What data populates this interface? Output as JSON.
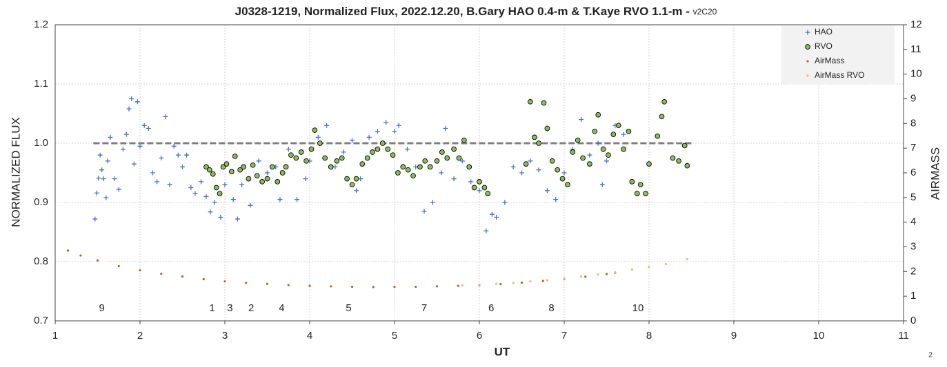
{
  "chart_data": {
    "type": "scatter",
    "title": "J0328-1219, Normalized Flux, 2022.12.20, B.Gary HAO 0.4-m & T.Kaye RVO 1.1-m -",
    "title_suffix": "v2C20",
    "x_label": "UT",
    "y_label": "NORMALIZED FLUX",
    "y2_label": "AIRMASS",
    "page_number": "2",
    "xlim": [
      1,
      11
    ],
    "xticks": [
      1,
      2,
      3,
      4,
      5,
      6,
      7,
      8,
      9,
      10,
      11
    ],
    "ylim": [
      0.7,
      1.2
    ],
    "yticks": [
      0.7,
      0.8,
      0.9,
      {
        "value": 1,
        "label": "1.0"
      },
      1.1,
      1.2
    ],
    "y2lim": [
      0,
      12
    ],
    "y2ticks": [
      0,
      1,
      2,
      3,
      4,
      5,
      6,
      7,
      8,
      9,
      10,
      11,
      12
    ],
    "grid": true,
    "legend": "top-right",
    "reference": {
      "y": 1.0,
      "x": [
        1.45,
        8.5
      ],
      "color": "#7f7f7f"
    },
    "annotations": [
      {
        "text": "9",
        "x": 1.55
      },
      {
        "text": "1",
        "x": 2.85
      },
      {
        "text": "3",
        "x": 3.06
      },
      {
        "text": "2",
        "x": 3.31
      },
      {
        "text": "4",
        "x": 3.67
      },
      {
        "text": "5",
        "x": 4.46
      },
      {
        "text": "7",
        "x": 5.35
      },
      {
        "text": "6",
        "x": 6.14
      },
      {
        "text": "8",
        "x": 6.85
      },
      {
        "text": "10",
        "x": 7.87
      }
    ],
    "series": [
      {
        "name": "HAO",
        "color": "#4472c4",
        "marker": "plus",
        "x": [
          1.47,
          1.49,
          1.51,
          1.53,
          1.55,
          1.57,
          1.6,
          1.62,
          1.65,
          1.7,
          1.75,
          1.8,
          1.84,
          1.87,
          1.9,
          1.93,
          1.97,
          2.0,
          2.05,
          2.1,
          2.15,
          2.2,
          2.25,
          2.3,
          2.35,
          2.4,
          2.45,
          2.5,
          2.55,
          2.6,
          2.65,
          2.72,
          2.78,
          2.83,
          2.88,
          2.95,
          3.0,
          3.1,
          3.15,
          3.2,
          3.3,
          3.4,
          3.5,
          3.6,
          3.65,
          3.75,
          3.85,
          3.95,
          4.0,
          4.1,
          4.2,
          4.3,
          4.4,
          4.5,
          4.55,
          4.6,
          4.7,
          4.8,
          4.9,
          5.0,
          5.05,
          5.15,
          5.25,
          5.35,
          5.45,
          5.55,
          5.6,
          5.7,
          5.8,
          5.9,
          6.0,
          6.08,
          6.15,
          6.2,
          6.3,
          6.4,
          6.5,
          6.6,
          6.7,
          6.8,
          6.9,
          7.0,
          7.1,
          7.2,
          7.3,
          7.4,
          7.45,
          7.5,
          7.6,
          7.7
        ],
        "values": [
          0.872,
          0.916,
          0.941,
          0.98,
          0.955,
          0.94,
          0.908,
          0.97,
          1.01,
          0.94,
          0.922,
          0.99,
          1.015,
          1.058,
          1.075,
          0.965,
          1.07,
          0.995,
          1.03,
          1.025,
          0.95,
          0.935,
          0.975,
          1.045,
          0.93,
          0.995,
          0.98,
          0.96,
          0.98,
          0.925,
          0.915,
          0.935,
          0.91,
          0.884,
          0.9,
          0.875,
          0.93,
          0.905,
          0.872,
          0.93,
          0.895,
          0.97,
          0.95,
          0.96,
          0.905,
          0.99,
          0.905,
          0.94,
          0.97,
          1.01,
          1.03,
          0.96,
          0.985,
          1.005,
          0.92,
          0.94,
          1.01,
          1.02,
          1.035,
          1.02,
          1.03,
          0.99,
          0.96,
          0.885,
          0.9,
          0.95,
          1.025,
          0.94,
          0.97,
          0.935,
          0.92,
          0.852,
          0.88,
          0.875,
          0.9,
          0.96,
          0.95,
          0.97,
          0.955,
          0.92,
          0.905,
          0.95,
          0.99,
          1.04,
          0.98,
          1.0,
          0.93,
          0.97,
          1.03,
          1.015
        ]
      },
      {
        "name": "RVO",
        "color": "#8fbc5a",
        "marker": "circle",
        "x": [
          2.78,
          2.82,
          2.86,
          2.9,
          2.94,
          2.98,
          3.02,
          3.08,
          3.12,
          3.18,
          3.22,
          3.28,
          3.33,
          3.38,
          3.44,
          3.5,
          3.56,
          3.62,
          3.68,
          3.72,
          3.78,
          3.84,
          3.9,
          3.96,
          4.02,
          4.06,
          4.12,
          4.18,
          4.25,
          4.32,
          4.38,
          4.44,
          4.5,
          4.55,
          4.62,
          4.68,
          4.74,
          4.8,
          4.86,
          4.92,
          4.98,
          5.04,
          5.1,
          5.16,
          5.22,
          5.3,
          5.36,
          5.42,
          5.5,
          5.56,
          5.62,
          5.7,
          5.76,
          5.82,
          5.88,
          5.94,
          6.0,
          6.06,
          6.1,
          6.55,
          6.6,
          6.65,
          6.7,
          6.76,
          6.8,
          6.86,
          6.92,
          6.98,
          7.04,
          7.1,
          7.16,
          7.22,
          7.3,
          7.36,
          7.4,
          7.46,
          7.52,
          7.58,
          7.64,
          7.7,
          7.76,
          7.8,
          7.86,
          7.9,
          7.96,
          8.0,
          8.1,
          8.15,
          8.18,
          8.28,
          8.35,
          8.42,
          8.45
        ],
        "values": [
          0.96,
          0.955,
          0.948,
          0.925,
          0.915,
          0.96,
          0.965,
          0.952,
          0.978,
          0.955,
          0.96,
          0.94,
          0.963,
          0.945,
          0.935,
          0.94,
          0.96,
          0.935,
          0.95,
          0.96,
          0.98,
          0.975,
          0.985,
          0.97,
          0.99,
          1.022,
          1.0,
          0.975,
          0.96,
          0.97,
          0.975,
          0.94,
          0.93,
          0.94,
          0.965,
          0.975,
          0.985,
          0.99,
          1.0,
          0.99,
          0.98,
          0.95,
          0.96,
          0.955,
          0.945,
          0.96,
          0.97,
          0.96,
          0.97,
          0.985,
          0.975,
          0.99,
          0.975,
          1.005,
          0.96,
          0.925,
          0.935,
          0.925,
          0.915,
          0.965,
          1.07,
          1.01,
          1.0,
          1.068,
          1.025,
          0.97,
          0.955,
          0.94,
          0.93,
          0.985,
          1.005,
          0.975,
          0.965,
          1.02,
          1.048,
          0.99,
          0.98,
          1.015,
          1.03,
          0.99,
          1.02,
          0.935,
          0.915,
          0.93,
          0.915,
          0.965,
          1.012,
          1.045,
          1.07,
          0.975,
          0.97,
          0.996,
          0.962
        ]
      },
      {
        "name": "AirMass",
        "color": "#c55a11",
        "marker": "dot",
        "axis": "y2",
        "x": [
          1.15,
          1.3,
          1.5,
          1.75,
          2.0,
          2.25,
          2.5,
          2.75,
          3.0,
          3.25,
          3.5,
          3.75,
          4.0,
          4.25,
          4.5,
          4.75,
          5.0,
          5.25,
          5.5,
          5.75,
          6.0,
          6.25,
          6.5,
          6.75,
          7.0,
          7.25,
          7.5,
          7.6
        ],
        "values": [
          2.85,
          2.65,
          2.45,
          2.22,
          2.05,
          1.91,
          1.8,
          1.69,
          1.6,
          1.54,
          1.5,
          1.45,
          1.42,
          1.4,
          1.38,
          1.37,
          1.38,
          1.38,
          1.4,
          1.42,
          1.45,
          1.49,
          1.55,
          1.62,
          1.7,
          1.79,
          1.9,
          1.95
        ]
      },
      {
        "name": "AirMass RVO",
        "color": "#f4b183",
        "marker": "dot",
        "axis": "y2",
        "x": [
          5.8,
          6.0,
          6.2,
          6.4,
          6.6,
          6.8,
          7.0,
          7.2,
          7.4,
          7.6,
          7.8,
          8.0,
          8.2,
          8.45
        ],
        "values": [
          1.45,
          1.47,
          1.5,
          1.54,
          1.6,
          1.65,
          1.72,
          1.8,
          1.88,
          1.97,
          2.08,
          2.18,
          2.3,
          2.5
        ]
      }
    ]
  }
}
